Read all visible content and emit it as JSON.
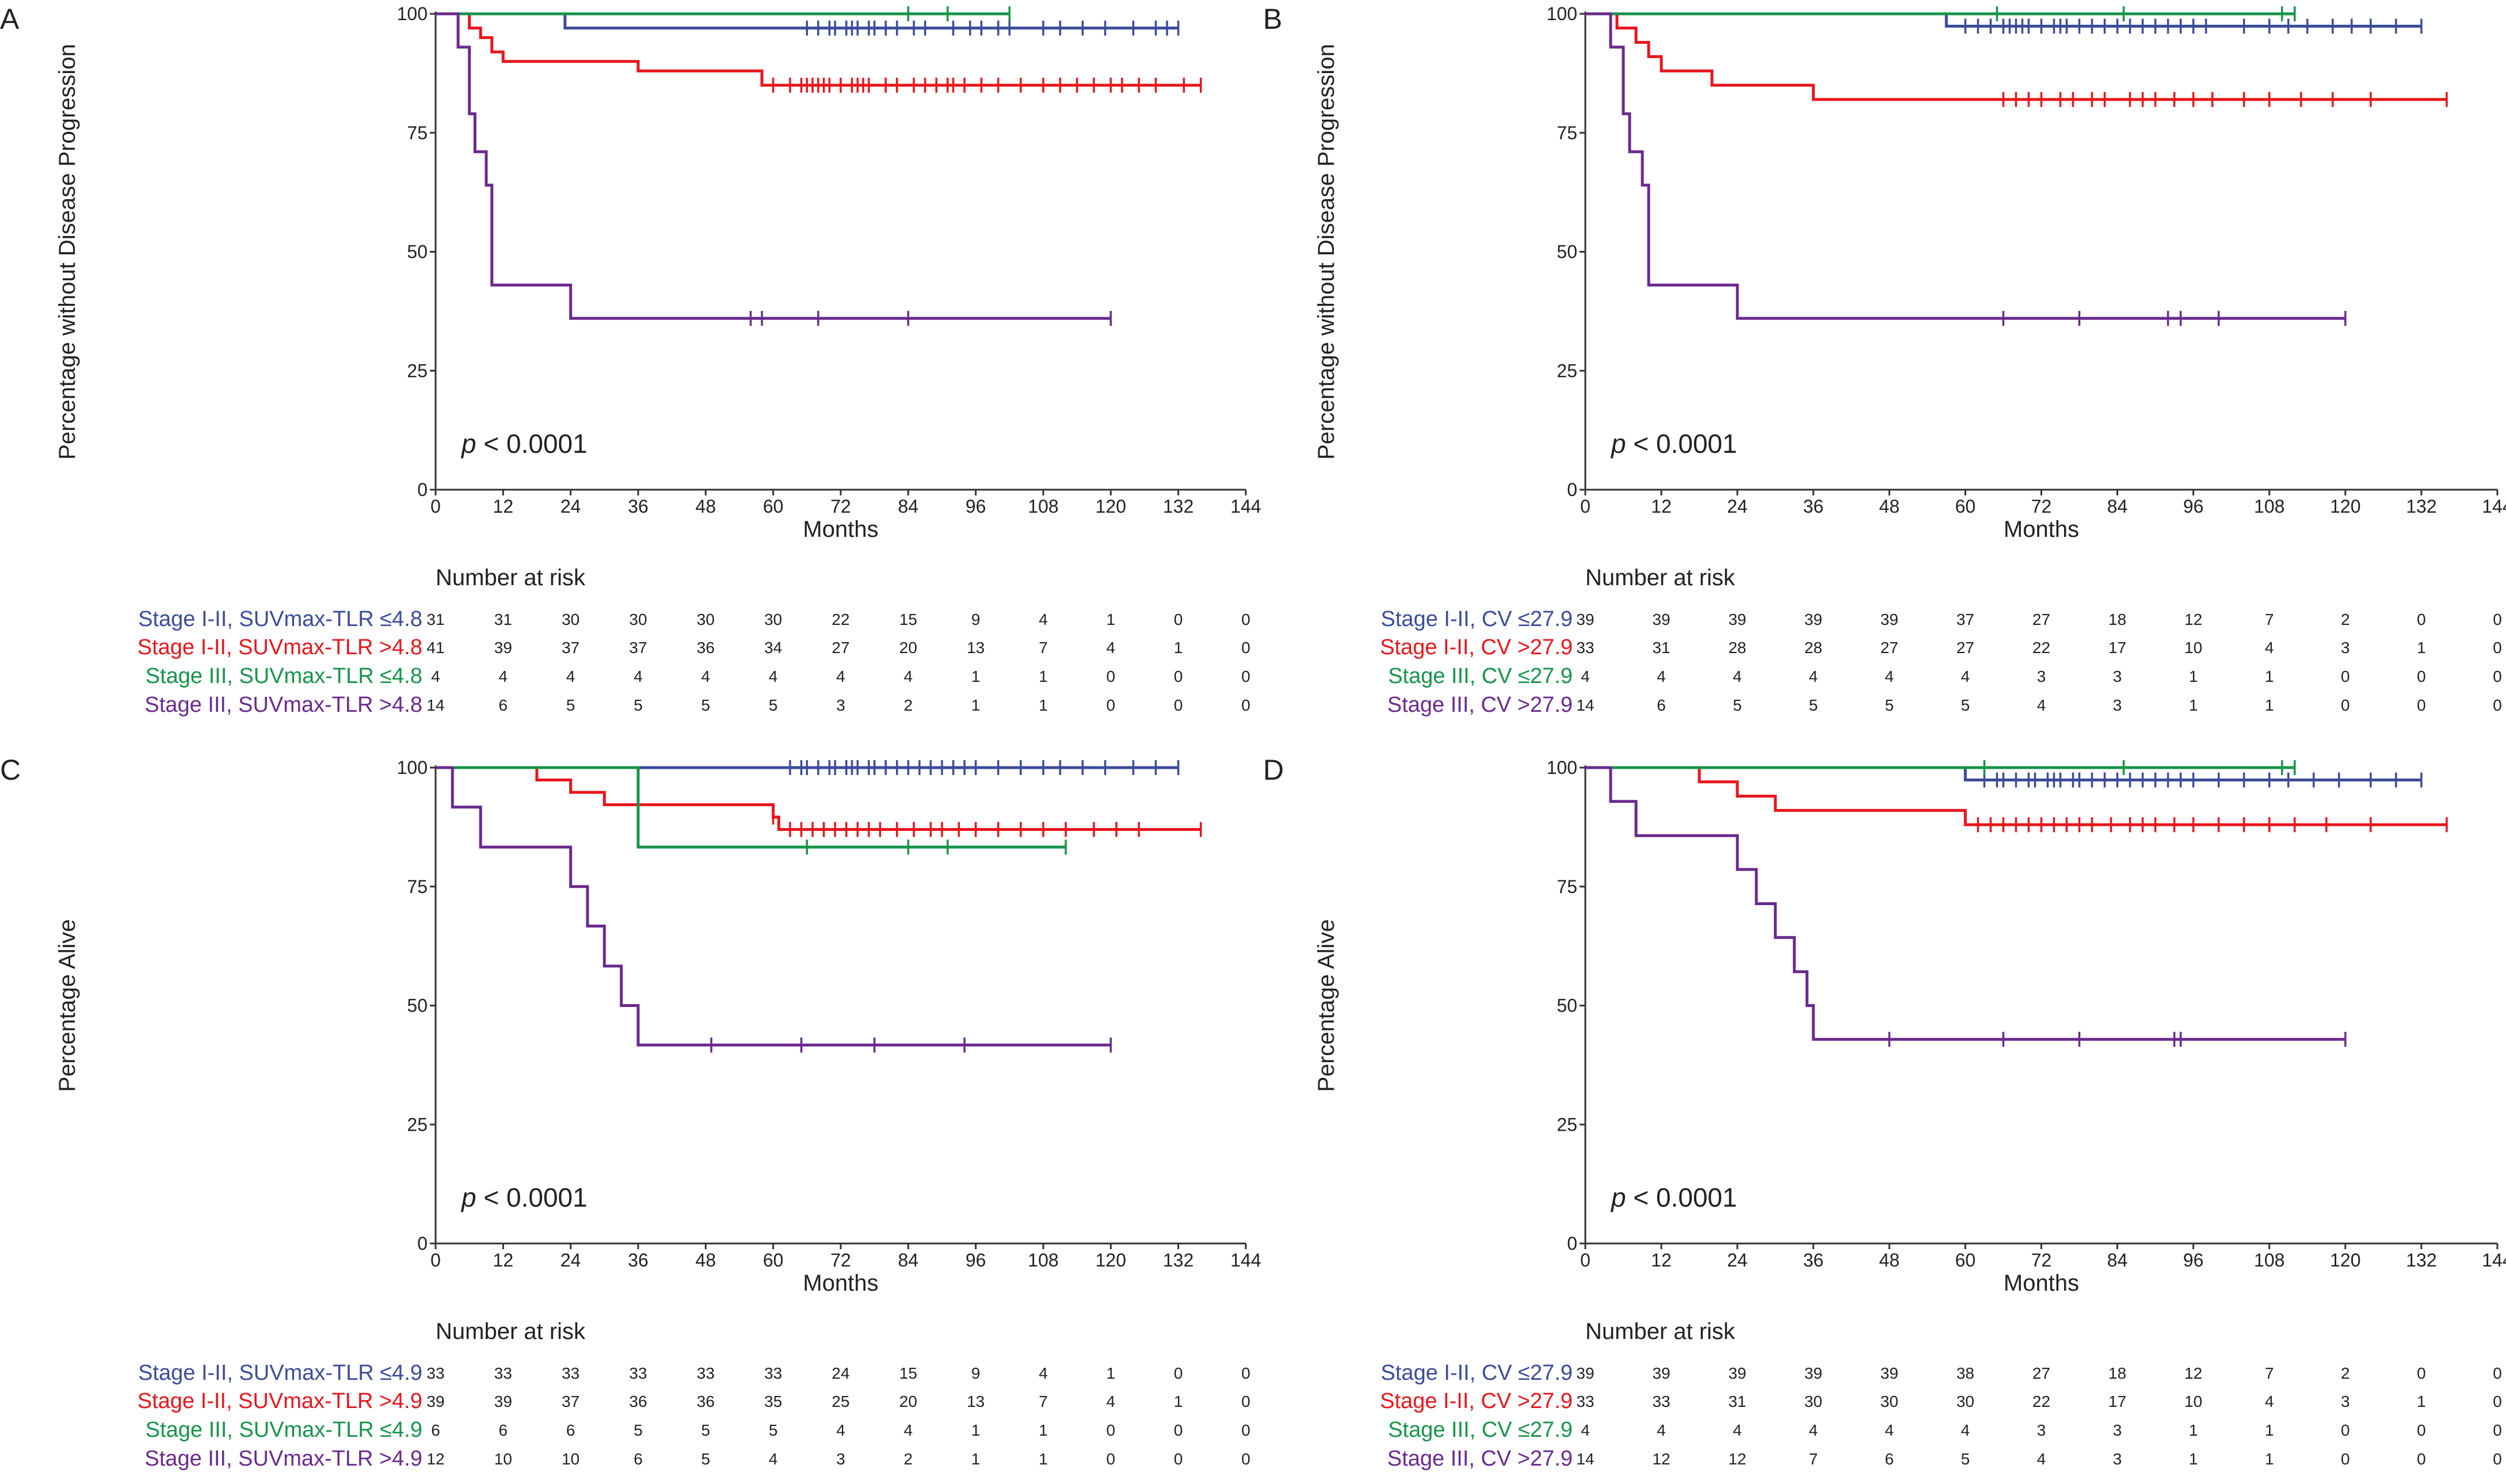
{
  "figure": {
    "xlabel": "Months",
    "risk_title": "Number at risk",
    "x_ticks": [
      0,
      12,
      24,
      36,
      48,
      60,
      72,
      84,
      96,
      108,
      120,
      132,
      144
    ],
    "y_ticks": [
      0,
      25,
      50,
      75,
      100
    ]
  },
  "colors": {
    "stage_i_ii_low": "#3b4c9b",
    "stage_i_ii_high": "#e8161c",
    "stage_iii_low": "#17944a",
    "stage_iii_high": "#6a2a8e"
  },
  "chart_data": [
    {
      "type": "line",
      "panel": "A",
      "ylabel": "Percentage without Disease Progression",
      "xlabel": "Months",
      "xlim": [
        0,
        144
      ],
      "ylim": [
        0,
        100
      ],
      "p_prefix": "p",
      "p_rest": " < 0.0001",
      "series": [
        {
          "name": "Stage I-II, SUVmax-TLR ≤4.8",
          "color_key": "stage_i_ii_low",
          "x": [
            0,
            23,
            23,
            132
          ],
          "y": [
            100,
            100,
            97,
            97
          ],
          "censor": [
            66,
            68,
            70,
            71,
            73,
            74,
            75,
            77,
            78,
            80,
            82,
            85,
            87,
            92,
            95,
            97,
            100,
            102,
            108,
            111,
            115,
            119,
            124,
            128,
            130,
            132
          ],
          "risk": [
            31,
            31,
            30,
            30,
            30,
            30,
            22,
            15,
            9,
            4,
            1,
            0,
            0
          ]
        },
        {
          "name": "Stage I-II, SUVmax-TLR >4.8",
          "color_key": "stage_i_ii_high",
          "x": [
            0,
            6,
            6,
            8,
            8,
            10,
            10,
            12,
            12,
            36,
            36,
            58,
            58,
            136
          ],
          "y": [
            100,
            100,
            97,
            97,
            95,
            95,
            92,
            92,
            90,
            90,
            88,
            88,
            85,
            85
          ],
          "censor": [
            60,
            63,
            65,
            66,
            67,
            68,
            69,
            70,
            72,
            74,
            75,
            76,
            77,
            80,
            82,
            85,
            87,
            89,
            91,
            92,
            94,
            97,
            100,
            104,
            108,
            111,
            114,
            117,
            120,
            122,
            125,
            128,
            133,
            136
          ],
          "risk": [
            41,
            39,
            37,
            37,
            36,
            34,
            27,
            20,
            13,
            7,
            4,
            1,
            0
          ]
        },
        {
          "name": "Stage III, SUVmax-TLR ≤4.8",
          "color_key": "stage_iii_low",
          "x": [
            0,
            102
          ],
          "y": [
            100,
            100
          ],
          "censor": [
            84,
            91,
            102
          ],
          "risk": [
            4,
            4,
            4,
            4,
            4,
            4,
            4,
            4,
            1,
            1,
            0,
            0,
            0
          ]
        },
        {
          "name": "Stage III, SUVmax-TLR >4.8",
          "color_key": "stage_iii_high",
          "x": [
            0,
            4,
            4,
            6,
            6,
            7,
            7,
            9,
            9,
            10,
            10,
            24,
            24,
            120
          ],
          "y": [
            100,
            100,
            93,
            93,
            79,
            79,
            71,
            71,
            64,
            64,
            43,
            43,
            36,
            36
          ],
          "censor": [
            56,
            58,
            68,
            84,
            120
          ],
          "risk": [
            14,
            6,
            5,
            5,
            5,
            5,
            3,
            2,
            1,
            1,
            0,
            0,
            0
          ]
        }
      ]
    },
    {
      "type": "line",
      "panel": "B",
      "ylabel": "Percentage without Disease Progression",
      "xlabel": "Months",
      "xlim": [
        0,
        144
      ],
      "ylim": [
        0,
        100
      ],
      "p_prefix": "p",
      "p_rest": " < 0.0001",
      "series": [
        {
          "name": "Stage I-II, CV ≤27.9",
          "color_key": "stage_i_ii_low",
          "x": [
            0,
            57,
            57,
            132
          ],
          "y": [
            100,
            100,
            97.4,
            97.4
          ],
          "censor": [
            60,
            62,
            64,
            66,
            67,
            68,
            69,
            70,
            72,
            74,
            75,
            76,
            78,
            80,
            82,
            84,
            86,
            88,
            90,
            92,
            94,
            96,
            98,
            104,
            108,
            111,
            114,
            118,
            121,
            124,
            128,
            132
          ],
          "risk": [
            39,
            39,
            39,
            39,
            39,
            37,
            27,
            18,
            12,
            7,
            2,
            0,
            0
          ]
        },
        {
          "name": "Stage I-II, CV >27.9",
          "color_key": "stage_i_ii_high",
          "x": [
            0,
            5,
            5,
            8,
            8,
            10,
            10,
            12,
            12,
            20,
            20,
            36,
            36,
            136
          ],
          "y": [
            100,
            100,
            97,
            97,
            94,
            94,
            91,
            91,
            88,
            88,
            85,
            85,
            82,
            82
          ],
          "censor": [
            66,
            68,
            70,
            72,
            75,
            77,
            80,
            82,
            86,
            88,
            90,
            93,
            96,
            99,
            104,
            108,
            113,
            118,
            124,
            136
          ],
          "risk": [
            33,
            31,
            28,
            28,
            27,
            27,
            22,
            17,
            10,
            4,
            3,
            1,
            0
          ]
        },
        {
          "name": "Stage III, CV ≤27.9",
          "color_key": "stage_iii_low",
          "x": [
            0,
            112
          ],
          "y": [
            100,
            100
          ],
          "censor": [
            65,
            85,
            110,
            112
          ],
          "risk": [
            4,
            4,
            4,
            4,
            4,
            4,
            3,
            3,
            1,
            1,
            0,
            0,
            0
          ]
        },
        {
          "name": "Stage III, CV >27.9",
          "color_key": "stage_iii_high",
          "x": [
            0,
            4,
            4,
            6,
            6,
            7,
            7,
            9,
            9,
            10,
            10,
            24,
            24,
            120
          ],
          "y": [
            100,
            100,
            93,
            93,
            79,
            79,
            71,
            71,
            64,
            64,
            43,
            43,
            36,
            36
          ],
          "censor": [
            66,
            78,
            92,
            94,
            100,
            120
          ],
          "risk": [
            14,
            6,
            5,
            5,
            5,
            5,
            4,
            3,
            1,
            1,
            0,
            0,
            0
          ]
        }
      ]
    },
    {
      "type": "line",
      "panel": "C",
      "ylabel": "Percentage Alive",
      "xlabel": "Months",
      "xlim": [
        0,
        144
      ],
      "ylim": [
        0,
        100
      ],
      "p_prefix": "p",
      "p_rest": " < 0.0001",
      "series": [
        {
          "name": "Stage I-II, SUVmax-TLR ≤4.9",
          "color_key": "stage_i_ii_low",
          "x": [
            0,
            132
          ],
          "y": [
            100,
            100
          ],
          "censor": [
            63,
            65,
            66,
            68,
            70,
            71,
            73,
            74,
            75,
            77,
            78,
            80,
            82,
            84,
            86,
            88,
            90,
            92,
            94,
            96,
            100,
            104,
            108,
            111,
            115,
            119,
            124,
            128,
            132
          ],
          "risk": [
            33,
            33,
            33,
            33,
            33,
            33,
            24,
            15,
            9,
            4,
            1,
            0,
            0
          ]
        },
        {
          "name": "Stage I-II, SUVmax-TLR >4.9",
          "color_key": "stage_i_ii_high",
          "x": [
            0,
            18,
            18,
            24,
            24,
            30,
            30,
            60,
            60,
            61,
            61,
            136
          ],
          "y": [
            100,
            100,
            97.4,
            97.4,
            94.8,
            94.8,
            92.2,
            92.2,
            89.6,
            89.6,
            87,
            87
          ],
          "censor": [
            60,
            63,
            65,
            67,
            69,
            71,
            73,
            75,
            77,
            79,
            82,
            85,
            88,
            90,
            93,
            96,
            100,
            104,
            108,
            112,
            117,
            121,
            125,
            136
          ],
          "risk": [
            39,
            39,
            37,
            36,
            36,
            35,
            25,
            20,
            13,
            7,
            4,
            1,
            0
          ]
        },
        {
          "name": "Stage III, SUVmax-TLR ≤4.9",
          "color_key": "stage_iii_low",
          "x": [
            0,
            36,
            36,
            112
          ],
          "y": [
            100,
            100,
            83.3,
            83.3
          ],
          "censor": [
            66,
            84,
            91,
            112
          ],
          "risk": [
            6,
            6,
            6,
            5,
            5,
            5,
            4,
            4,
            1,
            1,
            0,
            0,
            0
          ]
        },
        {
          "name": "Stage III, SUVmax-TLR >4.9",
          "color_key": "stage_iii_high",
          "x": [
            0,
            3,
            3,
            8,
            8,
            24,
            24,
            27,
            27,
            30,
            30,
            33,
            33,
            36,
            36,
            37,
            37,
            120
          ],
          "y": [
            100,
            100,
            91.7,
            91.7,
            83.3,
            83.3,
            75,
            75,
            66.7,
            66.7,
            58.3,
            58.3,
            50,
            50,
            41.7,
            41.7,
            41.7,
            41.7
          ],
          "censor": [
            49,
            65,
            78,
            94,
            120
          ],
          "risk": [
            12,
            10,
            10,
            6,
            5,
            4,
            3,
            2,
            1,
            1,
            0,
            0,
            0
          ]
        }
      ]
    },
    {
      "type": "line",
      "panel": "D",
      "ylabel": "Percentage Alive",
      "xlabel": "Months",
      "xlim": [
        0,
        144
      ],
      "ylim": [
        0,
        100
      ],
      "p_prefix": "p",
      "p_rest": " < 0.0001",
      "series": [
        {
          "name": "Stage I-II, CV ≤27.9",
          "color_key": "stage_i_ii_low",
          "x": [
            0,
            60,
            60,
            132
          ],
          "y": [
            100,
            100,
            97.4,
            97.4
          ],
          "censor": [
            63,
            65,
            66,
            68,
            70,
            71,
            73,
            74,
            75,
            77,
            78,
            80,
            82,
            84,
            86,
            88,
            90,
            92,
            94,
            96,
            100,
            104,
            108,
            111,
            115,
            119,
            124,
            128,
            132
          ],
          "risk": [
            39,
            39,
            39,
            39,
            39,
            38,
            27,
            18,
            12,
            7,
            2,
            0,
            0
          ]
        },
        {
          "name": "Stage I-II, CV >27.9",
          "color_key": "stage_i_ii_high",
          "x": [
            0,
            18,
            18,
            24,
            24,
            30,
            30,
            60,
            60,
            136
          ],
          "y": [
            100,
            100,
            97,
            97,
            94,
            94,
            91,
            91,
            88,
            88
          ],
          "censor": [
            62,
            64,
            66,
            68,
            70,
            72,
            74,
            76,
            78,
            80,
            83,
            86,
            88,
            90,
            93,
            96,
            100,
            104,
            108,
            112,
            117,
            124,
            136
          ],
          "risk": [
            33,
            33,
            31,
            30,
            30,
            30,
            22,
            17,
            10,
            4,
            3,
            1,
            0
          ]
        },
        {
          "name": "Stage III, CV ≤27.9",
          "color_key": "stage_iii_low",
          "x": [
            0,
            112
          ],
          "y": [
            100,
            100
          ],
          "censor": [
            63,
            85,
            110,
            112
          ],
          "risk": [
            4,
            4,
            4,
            4,
            4,
            4,
            3,
            3,
            1,
            1,
            0,
            0,
            0
          ]
        },
        {
          "name": "Stage III, CV >27.9",
          "color_key": "stage_iii_high",
          "x": [
            0,
            4,
            4,
            8,
            8,
            24,
            24,
            27,
            27,
            30,
            30,
            33,
            33,
            35,
            35,
            36,
            36,
            120
          ],
          "y": [
            100,
            100,
            92.9,
            92.9,
            85.7,
            85.7,
            78.6,
            78.6,
            71.4,
            71.4,
            64.3,
            64.3,
            57.1,
            57.1,
            50,
            50,
            42.9,
            42.9
          ],
          "censor": [
            48,
            66,
            78,
            93,
            94,
            120
          ],
          "risk": [
            14,
            12,
            12,
            7,
            6,
            5,
            4,
            3,
            1,
            1,
            0,
            0,
            0
          ]
        }
      ]
    }
  ]
}
